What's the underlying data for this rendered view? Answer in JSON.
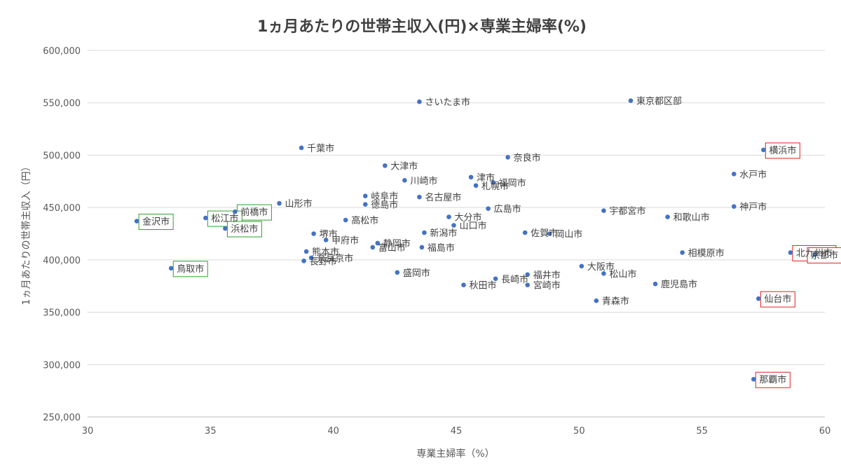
{
  "chart_data": {
    "type": "scatter",
    "title": "1ヵ月あたりの世帯主収入(円)×専業主婦率(%)",
    "xlabel": "専業主婦率（%）",
    "ylabel": "1ヵ月あたりの世帯主収入（円）",
    "xlim": [
      30,
      60
    ],
    "ylim": [
      250000,
      600000
    ],
    "xticks": [
      30,
      35,
      40,
      45,
      50,
      55,
      60
    ],
    "yticks": [
      250000,
      300000,
      350000,
      400000,
      450000,
      500000,
      550000,
      600000
    ],
    "grid": "horizontal",
    "point_color": "#4472c4",
    "highlight_colors": {
      "red": "#e02020",
      "green": "#2ca02c"
    },
    "points": [
      {
        "label": "さいたま市",
        "x": 43.5,
        "y": 551000
      },
      {
        "label": "東京都区部",
        "x": 52.1,
        "y": 552000
      },
      {
        "label": "千葉市",
        "x": 38.7,
        "y": 507000
      },
      {
        "label": "奈良市",
        "x": 47.1,
        "y": 498000
      },
      {
        "label": "横浜市",
        "x": 57.5,
        "y": 505000,
        "box": "red"
      },
      {
        "label": "大津市",
        "x": 42.1,
        "y": 490000
      },
      {
        "label": "川崎市",
        "x": 42.9,
        "y": 476000
      },
      {
        "label": "水戸市",
        "x": 56.3,
        "y": 482000
      },
      {
        "label": "津市",
        "x": 45.6,
        "y": 479000
      },
      {
        "label": "札幌市",
        "x": 45.8,
        "y": 471000
      },
      {
        "label": "福岡市",
        "x": 46.5,
        "y": 474000
      },
      {
        "label": "岐阜市",
        "x": 41.3,
        "y": 461000
      },
      {
        "label": "徳島市",
        "x": 41.3,
        "y": 453000
      },
      {
        "label": "名古屋市",
        "x": 43.5,
        "y": 460000
      },
      {
        "label": "山形市",
        "x": 37.8,
        "y": 454000
      },
      {
        "label": "前橋市",
        "x": 36.0,
        "y": 446000,
        "box": "green"
      },
      {
        "label": "松江市",
        "x": 34.8,
        "y": 440000,
        "box": "green"
      },
      {
        "label": "金沢市",
        "x": 32.0,
        "y": 437000,
        "box": "green"
      },
      {
        "label": "浜松市",
        "x": 35.6,
        "y": 430000,
        "box": "green"
      },
      {
        "label": "広島市",
        "x": 46.3,
        "y": 449000
      },
      {
        "label": "宇都宮市",
        "x": 51.0,
        "y": 447000
      },
      {
        "label": "和歌山市",
        "x": 53.6,
        "y": 441000
      },
      {
        "label": "神戸市",
        "x": 56.3,
        "y": 451000
      },
      {
        "label": "高松市",
        "x": 40.5,
        "y": 438000
      },
      {
        "label": "大分市",
        "x": 44.7,
        "y": 441000
      },
      {
        "label": "山口市",
        "x": 44.9,
        "y": 433000
      },
      {
        "label": "堺市",
        "x": 39.2,
        "y": 425000
      },
      {
        "label": "新潟市",
        "x": 43.7,
        "y": 426000
      },
      {
        "label": "佐賀市",
        "x": 47.8,
        "y": 426000
      },
      {
        "label": "岡山市",
        "x": 48.8,
        "y": 425000
      },
      {
        "label": "北九州市",
        "x": 58.6,
        "y": 407000,
        "box": "red"
      },
      {
        "label": "甲府市",
        "x": 39.7,
        "y": 419000
      },
      {
        "label": "静岡市",
        "x": 41.8,
        "y": 416000
      },
      {
        "label": "富山市",
        "x": 41.6,
        "y": 412000
      },
      {
        "label": "福島市",
        "x": 43.6,
        "y": 412000
      },
      {
        "label": "熊本市",
        "x": 38.9,
        "y": 408000
      },
      {
        "label": "奈良京市",
        "x": 39.1,
        "y": 402000
      },
      {
        "label": "長野市",
        "x": 38.8,
        "y": 399000
      },
      {
        "label": "相模原市",
        "x": 54.2,
        "y": 407000
      },
      {
        "label": "京都市",
        "x": 59.6,
        "y": 405000,
        "box": "red"
      },
      {
        "label": "大阪市",
        "x": 50.1,
        "y": 394000
      },
      {
        "label": "鳥取市",
        "x": 33.4,
        "y": 392000,
        "box": "green"
      },
      {
        "label": "盛岡市",
        "x": 42.6,
        "y": 388000
      },
      {
        "label": "松山市",
        "x": 51.0,
        "y": 387000
      },
      {
        "label": "福井市",
        "x": 47.9,
        "y": 386000
      },
      {
        "label": "長崎市",
        "x": 46.6,
        "y": 382000
      },
      {
        "label": "秋田市",
        "x": 45.3,
        "y": 376000
      },
      {
        "label": "宮崎市",
        "x": 47.9,
        "y": 376000
      },
      {
        "label": "鹿児島市",
        "x": 53.1,
        "y": 377000
      },
      {
        "label": "仙台市",
        "x": 57.3,
        "y": 363000,
        "box": "red"
      },
      {
        "label": "青森市",
        "x": 50.7,
        "y": 361000
      },
      {
        "label": "那覇市",
        "x": 57.1,
        "y": 286000,
        "box": "red"
      }
    ]
  }
}
